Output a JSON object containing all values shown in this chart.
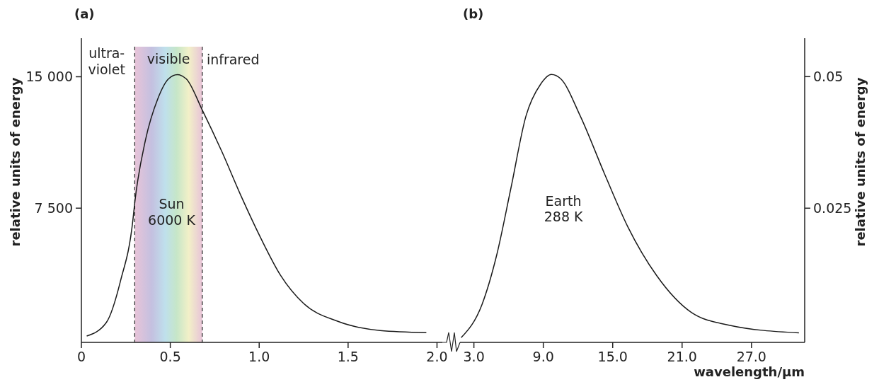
{
  "chart_data": [
    {
      "type": "line",
      "title": "(a)",
      "ylabel": "relative units of energy",
      "xlim": [
        0,
        2.03
      ],
      "ylim": [
        -160,
        17200
      ],
      "xticks": [
        0,
        {
          "value": 0.5,
          "label": "0.5"
        },
        {
          "value": 1,
          "label": "1.0"
        },
        {
          "value": 1.5,
          "label": "1.5"
        },
        {
          "value": 2,
          "label": "2.0"
        }
      ],
      "yticks": [
        {
          "value": 7500,
          "label": "7 500"
        },
        {
          "value": 15000,
          "label": "15 000"
        }
      ],
      "series": [
        {
          "color": "#1a1a1a",
          "x": [
            0.03,
            0.14,
            0.22,
            0.29,
            0.3,
            0.36,
            0.43,
            0.49,
            0.54,
            0.59,
            0.68,
            0.79,
            0.9,
            1.01,
            1.12,
            1.25,
            1.44,
            1.68,
            1.94
          ],
          "values": [
            200,
            970,
            3350,
            6850,
            7800,
            11370,
            13750,
            14880,
            15120,
            14880,
            13100,
            10730,
            8150,
            5770,
            3670,
            2060,
            1050,
            520,
            400
          ]
        }
      ],
      "bands": [
        {
          "axis": "x",
          "from": 0.3,
          "to": 0.68,
          "label": "visible"
        }
      ],
      "ref_lines": [
        {
          "axis": "x",
          "value": 0.3,
          "line_style": "dashed",
          "color": "#333333"
        },
        {
          "axis": "x",
          "value": 0.68,
          "line_style": "dashed",
          "color": "#333333"
        }
      ],
      "annotations": [
        "ultra-\nviolet",
        "infrared",
        "Sun\n6000 K"
      ],
      "grid": false,
      "marker": "none",
      "line_style": "solid"
    },
    {
      "type": "line",
      "title": "(b)",
      "xlabel": "wavelength/μm",
      "y2label": "relative units of energy",
      "xlim": [
        1.8,
        31.6
      ],
      "y2lim": [
        -0.0005,
        0.0573
      ],
      "xticks": [
        {
          "value": 3,
          "label": "3.0"
        },
        {
          "value": 9,
          "label": "9.0"
        },
        {
          "value": 15,
          "label": "15.0"
        },
        {
          "value": 21,
          "label": "21.0"
        },
        {
          "value": 27,
          "label": "27.0"
        }
      ],
      "y2ticks": [
        0.025,
        0.05
      ],
      "series": [
        {
          "color": "#1a1a1a",
          "axis": "y2",
          "x": [
            1.9,
            3.7,
            4.96,
            6.2,
            7.5,
            8.75,
            9.7,
            10.5,
            12.2,
            14.3,
            16.3,
            18.8,
            21.8,
            25,
            31.1
          ],
          "values": [
            0.0004,
            0.0067,
            0.016,
            0.0288,
            0.0425,
            0.0485,
            0.0504,
            0.0496,
            0.0425,
            0.0315,
            0.0215,
            0.0122,
            0.0052,
            0.0028,
            0.0013
          ]
        }
      ],
      "annotations": [
        "Earth\n288 K"
      ],
      "grid": false,
      "marker": "none",
      "line_style": "solid"
    }
  ]
}
